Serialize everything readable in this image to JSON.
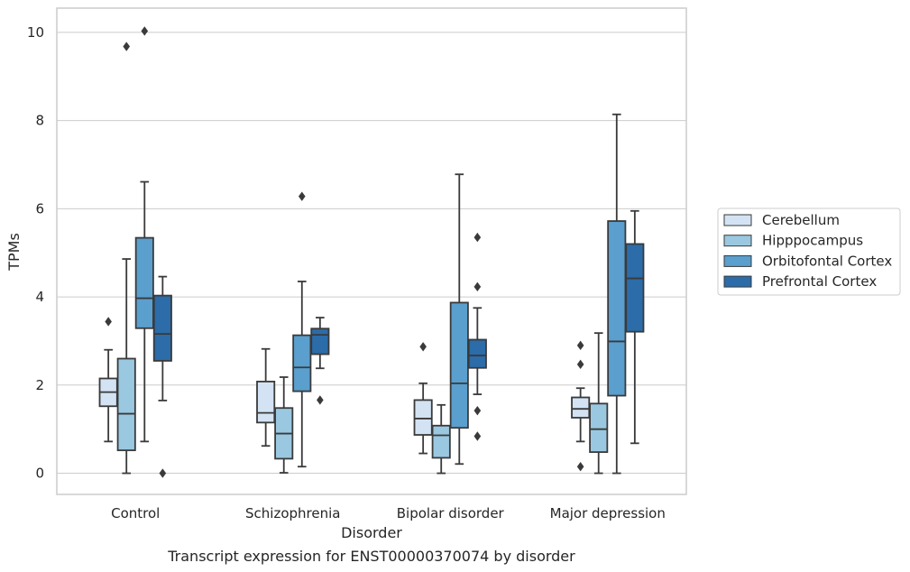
{
  "chart_data": {
    "type": "box",
    "title": "",
    "xlabel": "Disorder",
    "ylabel": "TPMs",
    "caption": "Transcript expression for ENST00000370074 by disorder",
    "categories": [
      "Control",
      "Schizophrenia",
      "Bipolar disorder",
      "Major depression"
    ],
    "ylim": [
      -0.48,
      10.55
    ],
    "yticks": [
      0,
      2,
      4,
      6,
      8,
      10
    ],
    "grid": "horizontal",
    "legend_position": "right",
    "series": [
      {
        "name": "Cerebellum",
        "color": "#d3e3f3",
        "boxes": [
          {
            "whisker_low": 0.72,
            "q1": 1.52,
            "median": 1.84,
            "q3": 2.15,
            "whisker_high": 2.8,
            "outliers": [
              3.44
            ]
          },
          {
            "whisker_low": 0.62,
            "q1": 1.15,
            "median": 1.37,
            "q3": 2.08,
            "whisker_high": 2.82,
            "outliers": []
          },
          {
            "whisker_low": 0.45,
            "q1": 0.87,
            "median": 1.24,
            "q3": 1.66,
            "whisker_high": 2.04,
            "outliers": [
              2.87
            ]
          },
          {
            "whisker_low": 0.72,
            "q1": 1.26,
            "median": 1.46,
            "q3": 1.72,
            "whisker_high": 1.93,
            "outliers": [
              0.15,
              2.47,
              2.9
            ]
          }
        ]
      },
      {
        "name": "Hipppocampus",
        "color": "#9ac8e0",
        "boxes": [
          {
            "whisker_low": 0.0,
            "q1": 0.52,
            "median": 1.35,
            "q3": 2.6,
            "whisker_high": 4.86,
            "outliers": [
              9.68
            ]
          },
          {
            "whisker_low": 0.01,
            "q1": 0.33,
            "median": 0.9,
            "q3": 1.48,
            "whisker_high": 2.18,
            "outliers": []
          },
          {
            "whisker_low": 0.0,
            "q1": 0.35,
            "median": 0.86,
            "q3": 1.08,
            "whisker_high": 1.55,
            "outliers": []
          },
          {
            "whisker_low": 0.0,
            "q1": 0.48,
            "median": 1.0,
            "q3": 1.58,
            "whisker_high": 3.18,
            "outliers": []
          }
        ]
      },
      {
        "name": "Orbitofontal Cortex",
        "color": "#5a9fcd",
        "boxes": [
          {
            "whisker_low": 0.72,
            "q1": 3.29,
            "median": 3.97,
            "q3": 5.34,
            "whisker_high": 6.61,
            "outliers": [
              10.03
            ]
          },
          {
            "whisker_low": 0.15,
            "q1": 1.86,
            "median": 2.4,
            "q3": 3.13,
            "whisker_high": 4.35,
            "outliers": [
              6.28
            ]
          },
          {
            "whisker_low": 0.21,
            "q1": 1.03,
            "median": 2.04,
            "q3": 3.87,
            "whisker_high": 6.78,
            "outliers": []
          },
          {
            "whisker_low": 0.0,
            "q1": 1.76,
            "median": 2.99,
            "q3": 5.72,
            "whisker_high": 8.14,
            "outliers": []
          }
        ]
      },
      {
        "name": "Prefrontal Cortex",
        "color": "#2b6ca9",
        "boxes": [
          {
            "whisker_low": 1.65,
            "q1": 2.55,
            "median": 3.16,
            "q3": 4.03,
            "whisker_high": 4.46,
            "outliers": [
              0.0
            ]
          },
          {
            "whisker_low": 2.38,
            "q1": 2.7,
            "median": 3.14,
            "q3": 3.28,
            "whisker_high": 3.53,
            "outliers": [
              1.66
            ]
          },
          {
            "whisker_low": 1.79,
            "q1": 2.39,
            "median": 2.67,
            "q3": 3.03,
            "whisker_high": 3.75,
            "outliers": [
              0.84,
              1.42,
              4.23,
              5.35
            ]
          },
          {
            "whisker_low": 0.68,
            "q1": 3.21,
            "median": 4.42,
            "q3": 5.2,
            "whisker_high": 5.95,
            "outliers": []
          }
        ]
      }
    ]
  }
}
